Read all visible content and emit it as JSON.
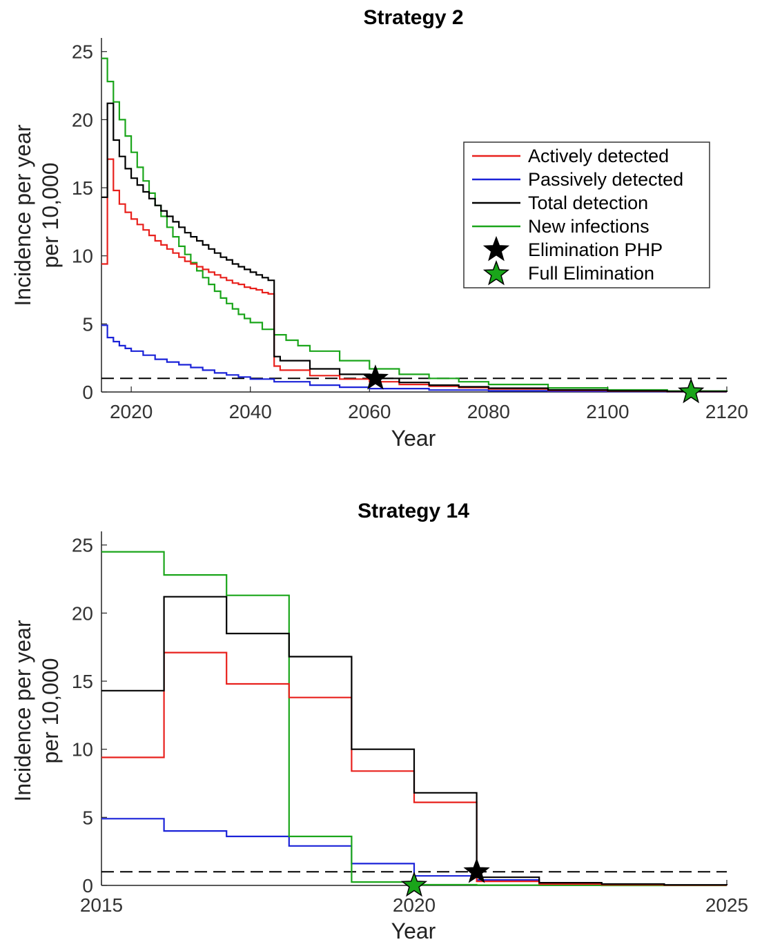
{
  "chart_data": [
    {
      "type": "line",
      "title": "Strategy 2",
      "xlabel": "Year",
      "ylabel_lines": [
        "Incidence per year",
        "per 10,000"
      ],
      "xlim": [
        2015,
        2120
      ],
      "ylim": [
        0,
        26
      ],
      "xticks": [
        2020,
        2040,
        2060,
        2080,
        2100,
        2120
      ],
      "yticks": [
        0,
        5,
        10,
        15,
        20,
        25
      ],
      "threshold": 1,
      "legend_position": "upper-right",
      "series": [
        {
          "name": "Actively detected",
          "color": "#e8201c",
          "step": true,
          "x": [
            2015,
            2016,
            2017,
            2018,
            2019,
            2020,
            2021,
            2022,
            2023,
            2024,
            2025,
            2026,
            2027,
            2028,
            2029,
            2030,
            2031,
            2032,
            2033,
            2034,
            2035,
            2036,
            2037,
            2038,
            2039,
            2040,
            2041,
            2042,
            2043,
            2044,
            2045,
            2050,
            2055,
            2060,
            2065,
            2070,
            2075,
            2080,
            2090,
            2100,
            2110,
            2120
          ],
          "values": [
            9.4,
            17.1,
            14.8,
            13.8,
            13.2,
            12.7,
            12.3,
            11.9,
            11.5,
            11.1,
            10.8,
            10.5,
            10.2,
            9.9,
            9.6,
            9.4,
            9.2,
            9.0,
            8.8,
            8.6,
            8.4,
            8.2,
            8.0,
            7.9,
            7.7,
            7.6,
            7.5,
            7.3,
            7.2,
            1.9,
            1.6,
            1.2,
            0.95,
            0.75,
            0.55,
            0.42,
            0.32,
            0.22,
            0.12,
            0.06,
            0.03,
            0.02
          ]
        },
        {
          "name": "Passively detected",
          "color": "#1a22d8",
          "step": true,
          "x": [
            2015,
            2016,
            2017,
            2018,
            2019,
            2020,
            2022,
            2024,
            2026,
            2028,
            2030,
            2032,
            2034,
            2036,
            2038,
            2040,
            2044,
            2050,
            2055,
            2060,
            2070,
            2080,
            2090,
            2100,
            2110,
            2120
          ],
          "values": [
            4.9,
            4.0,
            3.7,
            3.4,
            3.2,
            3.0,
            2.7,
            2.4,
            2.2,
            2.0,
            1.8,
            1.6,
            1.4,
            1.25,
            1.1,
            0.95,
            0.75,
            0.5,
            0.35,
            0.25,
            0.14,
            0.08,
            0.05,
            0.03,
            0.02,
            0.01
          ]
        },
        {
          "name": "Total detection",
          "color": "#000000",
          "step": true,
          "x": [
            2015,
            2016,
            2017,
            2018,
            2019,
            2020,
            2021,
            2022,
            2023,
            2024,
            2025,
            2026,
            2027,
            2028,
            2029,
            2030,
            2031,
            2032,
            2033,
            2034,
            2035,
            2036,
            2037,
            2038,
            2039,
            2040,
            2041,
            2042,
            2043,
            2044,
            2045,
            2050,
            2055,
            2060,
            2065,
            2070,
            2075,
            2080,
            2090,
            2100,
            2110,
            2120
          ],
          "values": [
            14.3,
            21.2,
            18.5,
            17.3,
            16.4,
            15.7,
            15.2,
            14.7,
            14.2,
            13.7,
            13.3,
            12.9,
            12.5,
            12.1,
            11.7,
            11.4,
            11.1,
            10.8,
            10.5,
            10.2,
            9.9,
            9.7,
            9.4,
            9.2,
            9.0,
            8.8,
            8.6,
            8.4,
            8.2,
            2.6,
            2.3,
            1.7,
            1.3,
            1.0,
            0.7,
            0.5,
            0.38,
            0.28,
            0.15,
            0.08,
            0.04,
            0.02
          ]
        },
        {
          "name": "New infections",
          "color": "#1aa51a",
          "step": true,
          "x": [
            2015,
            2016,
            2017,
            2018,
            2019,
            2020,
            2021,
            2022,
            2023,
            2024,
            2025,
            2026,
            2027,
            2028,
            2029,
            2030,
            2031,
            2032,
            2033,
            2034,
            2035,
            2036,
            2037,
            2038,
            2039,
            2040,
            2042,
            2044,
            2046,
            2048,
            2050,
            2055,
            2060,
            2065,
            2070,
            2075,
            2080,
            2090,
            2100,
            2110,
            2120
          ],
          "values": [
            24.5,
            22.8,
            21.3,
            20.0,
            18.8,
            17.6,
            16.5,
            15.5,
            14.6,
            13.7,
            12.9,
            12.1,
            11.4,
            10.7,
            10.1,
            9.5,
            8.9,
            8.4,
            7.9,
            7.4,
            6.9,
            6.5,
            6.1,
            5.7,
            5.4,
            5.1,
            4.6,
            4.2,
            3.8,
            3.4,
            3.0,
            2.3,
            1.7,
            1.3,
            1.0,
            0.75,
            0.55,
            0.3,
            0.15,
            0.07,
            0.03
          ]
        }
      ],
      "markers": [
        {
          "name": "Elimination PHP",
          "shape": "star",
          "color": "#000000",
          "x": 2061,
          "y": 1.0
        },
        {
          "name": "Full Elimination",
          "shape": "star",
          "color": "#1aa51a",
          "x": 2114,
          "y": 0.0
        }
      ]
    },
    {
      "type": "line",
      "title": "Strategy 14",
      "xlabel": "Year",
      "ylabel_lines": [
        "Incidence per year",
        "per 10,000"
      ],
      "xlim": [
        2015,
        2025
      ],
      "ylim": [
        0,
        26
      ],
      "xticks": [
        2015,
        2020,
        2025
      ],
      "yticks": [
        0,
        5,
        10,
        15,
        20,
        25
      ],
      "threshold": 1,
      "series": [
        {
          "name": "Actively detected",
          "color": "#e8201c",
          "step": true,
          "x": [
            2015,
            2016,
            2017,
            2018,
            2019,
            2020,
            2021,
            2022,
            2023,
            2024,
            2025
          ],
          "values": [
            9.4,
            17.1,
            14.8,
            13.8,
            8.4,
            6.1,
            0.3,
            0.1,
            0.05,
            0.02,
            0.01
          ]
        },
        {
          "name": "Passively detected",
          "color": "#1a22d8",
          "step": true,
          "x": [
            2015,
            2016,
            2017,
            2018,
            2019,
            2020,
            2021,
            2022,
            2023,
            2024,
            2025
          ],
          "values": [
            4.9,
            4.0,
            3.6,
            2.9,
            1.6,
            0.7,
            0.4,
            0.1,
            0.05,
            0.02,
            0.01
          ]
        },
        {
          "name": "Total detection",
          "color": "#000000",
          "step": true,
          "x": [
            2015,
            2016,
            2017,
            2018,
            2019,
            2020,
            2021,
            2022,
            2023,
            2024,
            2025
          ],
          "values": [
            14.3,
            21.2,
            18.5,
            16.8,
            10.0,
            6.8,
            0.6,
            0.2,
            0.1,
            0.04,
            0.02
          ]
        },
        {
          "name": "New infections",
          "color": "#1aa51a",
          "step": true,
          "x": [
            2015,
            2016,
            2017,
            2018,
            2019,
            2020,
            2021,
            2022,
            2023,
            2024,
            2025
          ],
          "values": [
            24.5,
            22.8,
            21.3,
            3.6,
            0.25,
            0.05,
            0.02,
            0.01,
            0.0,
            0.0,
            0.0
          ]
        }
      ],
      "markers": [
        {
          "name": "Elimination PHP",
          "shape": "star",
          "color": "#000000",
          "x": 2021,
          "y": 1.0
        },
        {
          "name": "Full Elimination",
          "shape": "star",
          "color": "#1aa51a",
          "x": 2020,
          "y": 0.0
        }
      ]
    }
  ],
  "colors": {
    "axis": "#222222",
    "threshold": "#000000"
  }
}
